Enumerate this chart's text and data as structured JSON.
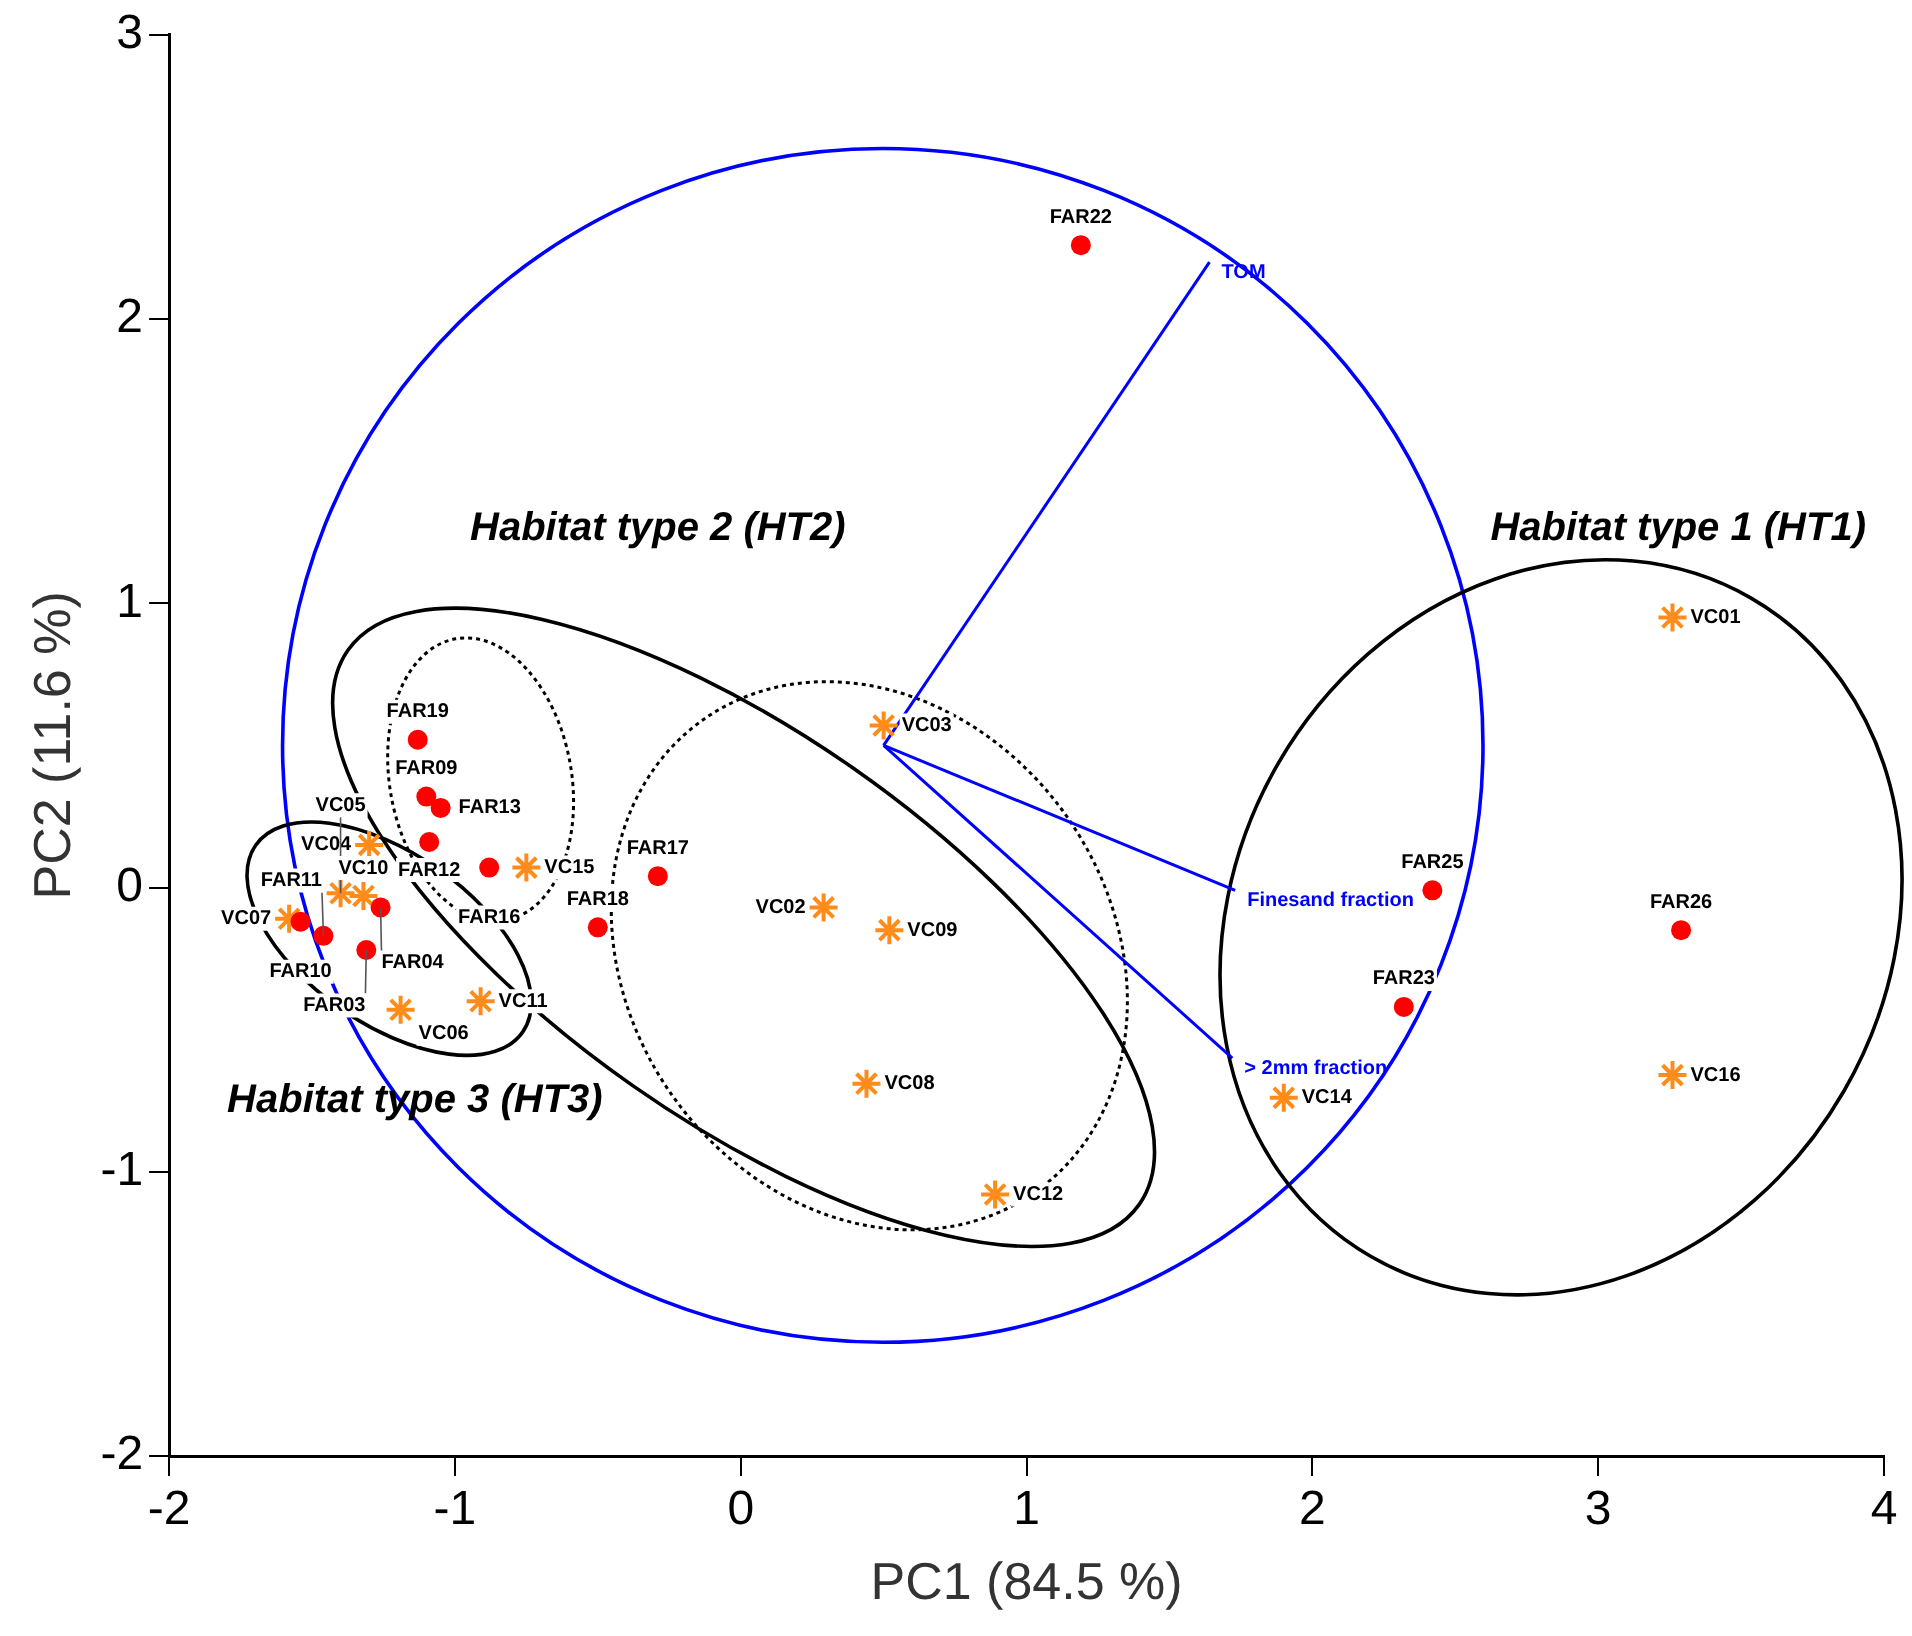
{
  "chart_data": {
    "type": "scatter",
    "xlabel": "PC1 (84.5 %)",
    "ylabel": "PC2 (11.6 %)",
    "xlim": [
      -2,
      4
    ],
    "xticks": [
      -2,
      -1,
      0,
      1,
      2,
      3,
      4
    ],
    "ylim": [
      -2,
      3
    ],
    "yticks": [
      -2,
      -1,
      0,
      1,
      2,
      3
    ],
    "grid": false,
    "legend": false,
    "series": [
      {
        "marker": "circle",
        "color": "#ff0000",
        "x": [
          1.19,
          -1.13,
          -1.1,
          -1.05,
          -1.09,
          -0.88,
          -1.26,
          -1.54,
          -1.46,
          -1.31,
          -0.5,
          -0.29,
          2.42,
          3.29,
          2.32
        ],
        "values": [
          2.26,
          0.52,
          0.32,
          0.28,
          0.16,
          0.07,
          -0.07,
          -0.12,
          -0.17,
          -0.22,
          -0.14,
          0.04,
          -0.01,
          -0.15,
          -0.42
        ]
      },
      {
        "marker": "cross",
        "color": "#ff8c1a",
        "x": [
          3.26,
          3.26,
          1.9,
          0.5,
          0.29,
          0.52,
          0.44,
          0.89,
          -0.75,
          -1.3,
          -1.4,
          -1.32,
          -1.58,
          -1.19,
          -0.91
        ],
        "values": [
          0.95,
          -0.66,
          -0.74,
          0.57,
          -0.07,
          -0.15,
          -0.69,
          -1.08,
          0.07,
          0.15,
          -0.02,
          -0.03,
          -0.11,
          -0.43,
          -0.4
        ]
      },
      {
        "type": "line",
        "name": "TOM",
        "color": "#0000ff",
        "x": [
          0.5,
          1.64
        ],
        "values": [
          0.5,
          2.2
        ]
      },
      {
        "type": "line",
        "name": "Finesand fraction",
        "color": "#0000ff",
        "x": [
          0.5,
          1.73
        ],
        "values": [
          0.5,
          -0.01
        ]
      },
      {
        "type": "line",
        "name": "> 2mm fraction",
        "color": "#0000ff",
        "x": [
          0.5,
          1.72
        ],
        "values": [
          0.5,
          -0.6
        ]
      }
    ],
    "annotations": [
      "Habitat type 2 (HT2)",
      "Habitat type 1 (HT1)",
      "Habitat type 3 (HT3)",
      {
        "text": "FAR22",
        "x": 1.19,
        "y": 2.26
      },
      {
        "text": "FAR19",
        "x": -1.13,
        "y": 0.52
      },
      {
        "text": "FAR09",
        "x": -1.1,
        "y": 0.32
      },
      {
        "text": "FAR13",
        "x": -1.05,
        "y": 0.28
      },
      {
        "text": "FAR12",
        "x": -1.09,
        "y": 0.16
      },
      {
        "text": "FAR16",
        "x": -0.88,
        "y": 0.07
      },
      {
        "text": "FAR04",
        "x": -1.26,
        "y": -0.07
      },
      {
        "text": "FAR10",
        "x": -1.54,
        "y": -0.12
      },
      {
        "text": "FAR11",
        "x": -1.46,
        "y": -0.17
      },
      {
        "text": "FAR03",
        "x": -1.31,
        "y": -0.22
      },
      {
        "text": "FAR18",
        "x": -0.5,
        "y": -0.14
      },
      {
        "text": "FAR17",
        "x": -0.29,
        "y": 0.04
      },
      {
        "text": "FAR25",
        "x": 2.42,
        "y": -0.01
      },
      {
        "text": "FAR26",
        "x": 3.29,
        "y": -0.15
      },
      {
        "text": "FAR23",
        "x": 2.32,
        "y": -0.42
      },
      {
        "text": "VC01",
        "x": 3.26,
        "y": 0.95
      },
      {
        "text": "VC16",
        "x": 3.26,
        "y": -0.66
      },
      {
        "text": "VC14",
        "x": 1.9,
        "y": -0.74
      },
      {
        "text": "VC03",
        "x": 0.5,
        "y": 0.57
      },
      {
        "text": "VC02",
        "x": 0.29,
        "y": -0.07
      },
      {
        "text": "VC09",
        "x": 0.52,
        "y": -0.15
      },
      {
        "text": "VC08",
        "x": 0.44,
        "y": -0.69
      },
      {
        "text": "VC12",
        "x": 0.89,
        "y": -1.08
      },
      {
        "text": "VC15",
        "x": -0.75,
        "y": 0.07
      },
      {
        "text": "VC04",
        "x": -1.3,
        "y": 0.15
      },
      {
        "text": "VC05",
        "x": -1.4,
        "y": -0.02
      },
      {
        "text": "VC10",
        "x": -1.32,
        "y": -0.03
      },
      {
        "text": "VC07",
        "x": -1.58,
        "y": -0.11
      },
      {
        "text": "VC06",
        "x": -1.19,
        "y": -0.43
      },
      {
        "text": "VC11",
        "x": -0.91,
        "y": -0.4
      }
    ]
  }
}
